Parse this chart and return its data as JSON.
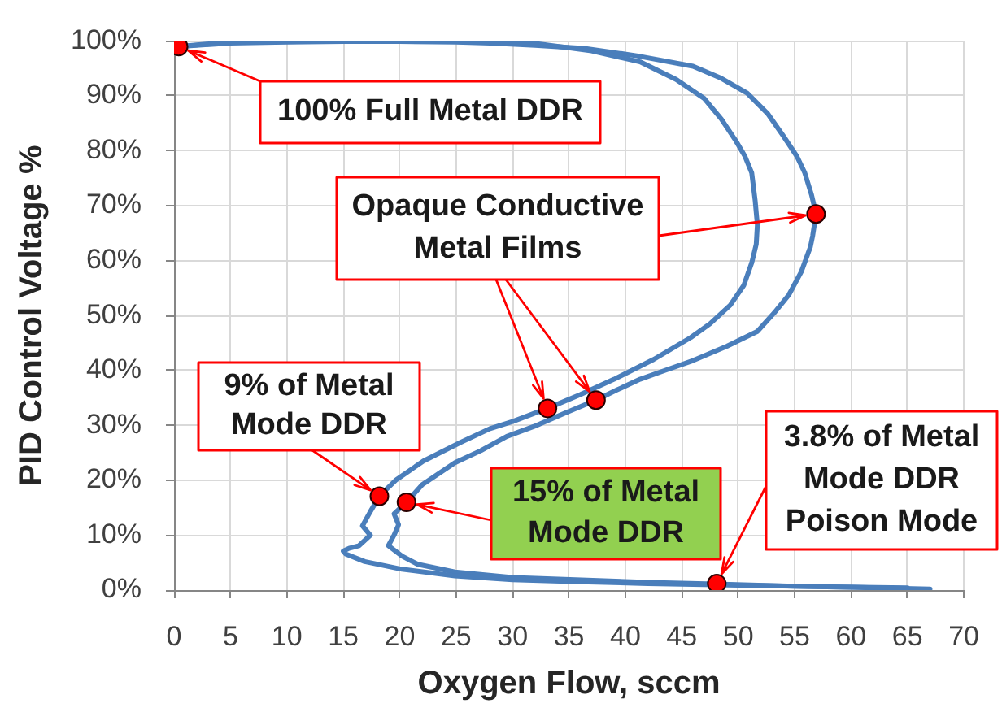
{
  "chart_data": {
    "type": "line",
    "xlabel": "Oxygen Flow, sccm",
    "ylabel": "PID Control Voltage %",
    "xlim": [
      0,
      70
    ],
    "ylim": [
      0,
      100
    ],
    "xticks": [
      0,
      5,
      10,
      15,
      20,
      25,
      30,
      35,
      40,
      45,
      50,
      55,
      60,
      65,
      70
    ],
    "yticks": [
      {
        "value": 0,
        "label": "0%"
      },
      {
        "value": 10,
        "label": "10%"
      },
      {
        "value": 20,
        "label": "20%"
      },
      {
        "value": 30,
        "label": "30%"
      },
      {
        "value": 40,
        "label": "40%"
      },
      {
        "value": 50,
        "label": "50%"
      },
      {
        "value": 60,
        "label": "60%"
      },
      {
        "value": 70,
        "label": "70%"
      },
      {
        "value": 80,
        "label": "80%"
      },
      {
        "value": 90,
        "label": "90%"
      },
      {
        "value": 100,
        "label": "100%"
      }
    ],
    "grid": true,
    "marker": "none",
    "series": [
      {
        "type": "line",
        "color": "#4a7ebb",
        "x": [
          65,
          58,
          50,
          42,
          36,
          30,
          24.9,
          20.2,
          16.9,
          15.2,
          15,
          15.5,
          16.4,
          17.4,
          16.7,
          17.4,
          18.2,
          19.7,
          22.1,
          25.4,
          28,
          30,
          33.1,
          36,
          39,
          42.5,
          45.8,
          47.5,
          49.3,
          50.5,
          51.2,
          51.6,
          51.7,
          51.5,
          51.2,
          50.6,
          49.8,
          48.5,
          47,
          44.5,
          41.3,
          37,
          31.9,
          25,
          15,
          5,
          0.4
        ],
        "values": [
          0.4,
          0.6,
          0.9,
          1.2,
          1.5,
          1.9,
          2.6,
          3.8,
          5.2,
          6.6,
          7.1,
          7.6,
          8.1,
          10,
          11.7,
          14.3,
          17.1,
          20.1,
          23.5,
          26.9,
          29.4,
          30.7,
          33.1,
          35.6,
          38.4,
          42,
          46,
          48.5,
          51.9,
          55.5,
          59.6,
          63,
          66.5,
          71,
          76,
          79,
          81.8,
          85.8,
          89.5,
          93,
          96.2,
          98.2,
          99.6,
          99.9,
          100,
          99.8,
          99
        ]
      },
      {
        "type": "line",
        "color": "#4a7ebb",
        "x": [
          0.4,
          5,
          10,
          15,
          20,
          25,
          28,
          32,
          36.6,
          41,
          46,
          48.5,
          50.8,
          52.6,
          54,
          55.2,
          55.9,
          56.5,
          56.9,
          56.6,
          56.4,
          55.6,
          54.5,
          53.2,
          51.7,
          49,
          46,
          43.5,
          41.3,
          39.2,
          37.4,
          34.6,
          31.9,
          29.5,
          27.2,
          24.9,
          22,
          20.6,
          19.5,
          19.9,
          19.5,
          19,
          20.2,
          21.6,
          24.9,
          30,
          36.6,
          42,
          47.9,
          55,
          60,
          67
        ],
        "values": [
          99,
          99.6,
          99.8,
          99.9,
          99.9,
          99.8,
          99.6,
          99.2,
          98.6,
          97.3,
          95.4,
          93.2,
          90.5,
          86.8,
          82.7,
          79,
          76,
          72,
          68.5,
          64.5,
          62.5,
          58,
          53.8,
          50.5,
          47.1,
          44.4,
          41.8,
          40,
          38.4,
          36.4,
          34.6,
          32.2,
          29.8,
          28,
          25.4,
          23.2,
          19.2,
          16,
          13.9,
          11.9,
          10,
          8.1,
          6.2,
          4.7,
          3.3,
          2.3,
          1.8,
          1.4,
          1.1,
          0.7,
          0.5,
          0.2
        ]
      },
      {
        "type": "scatter",
        "color": "#ff0000",
        "marker": "circle",
        "x": [
          0.4,
          56.9,
          33.1,
          37.4,
          18.2,
          20.6,
          48.1
        ],
        "values": [
          99,
          68.5,
          33.1,
          34.6,
          17.1,
          16,
          1.2
        ]
      }
    ],
    "annotations": [
      {
        "text": "100% Full Metal DDR",
        "x": 0.4,
        "y": 99
      },
      {
        "text": "Opaque Conductive Metal Films",
        "x": 56.9,
        "y": 68.5
      },
      {
        "text": "9% of Metal Mode DDR",
        "x": 18.2,
        "y": 17.1
      },
      {
        "text": "15% of Metal Mode DDR",
        "x": 20.6,
        "y": 16
      },
      {
        "text": "3.8% of Metal Mode DDR Poison Mode",
        "x": 48.1,
        "y": 1.2
      }
    ]
  }
}
